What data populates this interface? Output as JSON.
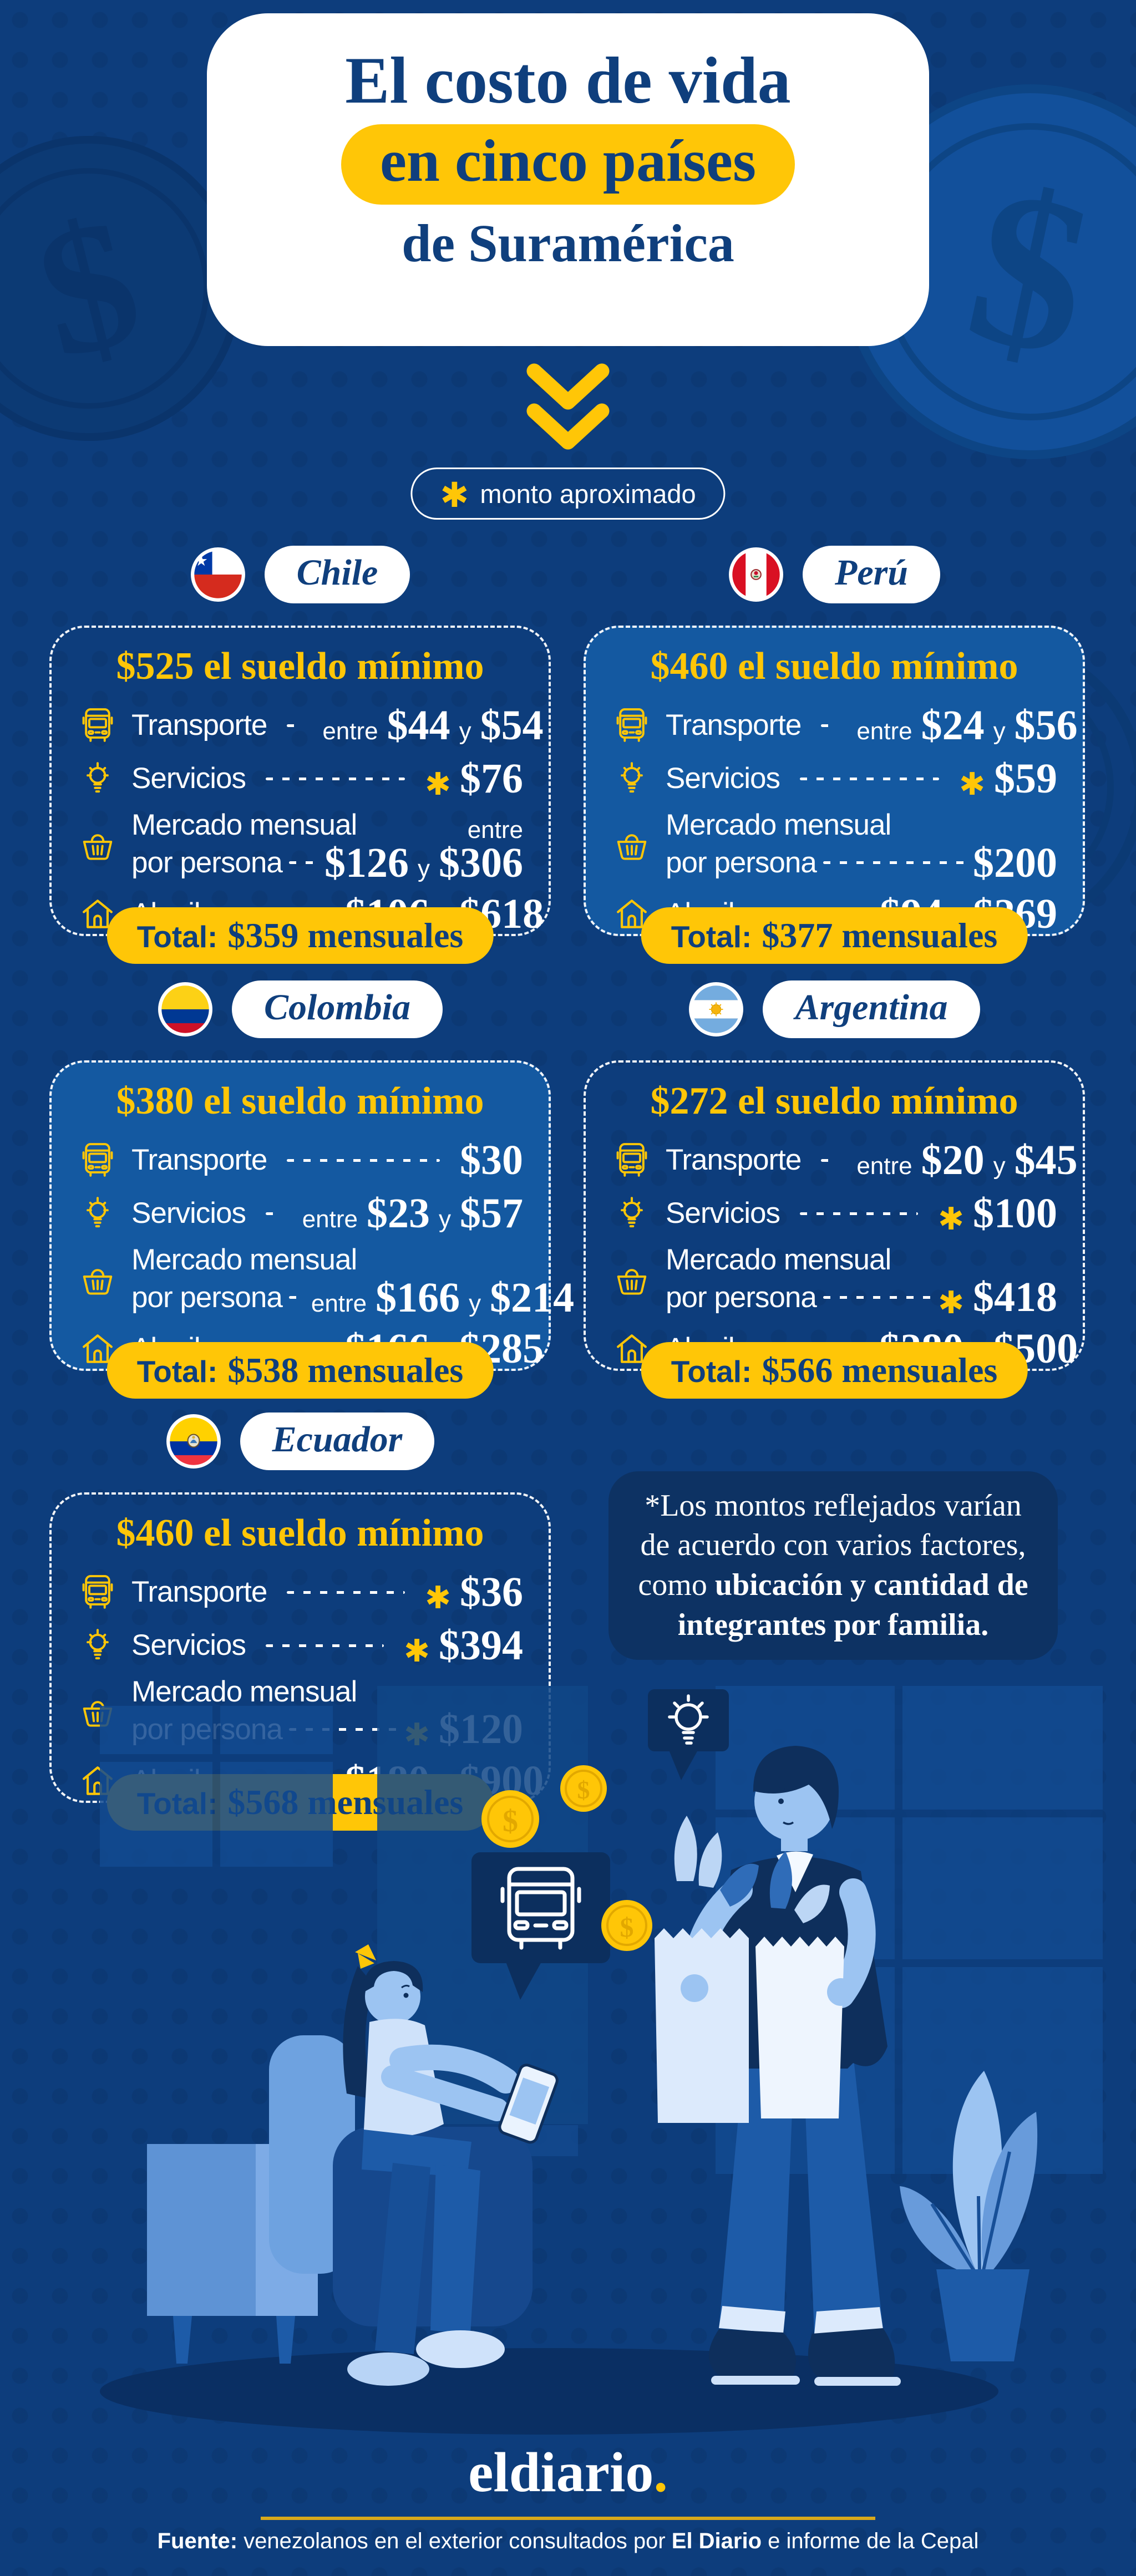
{
  "colors": {
    "background": "#0d3d7c",
    "yellow": "#ffc607",
    "navy_text": "#0f3f7d",
    "card_fill": "#1459a1",
    "note_bg": "#0d3263",
    "white": "#ffffff"
  },
  "symbols": {
    "asterisk": "✱",
    "dollar": "$"
  },
  "header": {
    "title_line1": "El costo de vida",
    "title_line2": "en cinco países",
    "title_line3": "de Suramérica"
  },
  "legend": {
    "label": "monto aproximado"
  },
  "countries": [
    {
      "id": "chile",
      "flag": "chile",
      "name": "Chile",
      "filled": false,
      "salary": "$525 el sueldo mínimo",
      "rows": [
        {
          "icon": "bus",
          "label": "Transporte",
          "entre": "entre",
          "a": "$44",
          "y": "y",
          "b": "$54"
        },
        {
          "icon": "bulb",
          "label": "Servicios",
          "ast": true,
          "a": "$76"
        },
        {
          "icon": "basket",
          "label": "Mercado mensual",
          "label2": "por persona",
          "entre": "entre",
          "entre_above": true,
          "a": "$126",
          "y": "y",
          "b": "$306"
        },
        {
          "icon": "house",
          "label": "Alquiler",
          "entre": "entre",
          "a": "$106",
          "y": "y",
          "b": "$618"
        }
      ],
      "total_label": "Total:",
      "total_value": "$359 mensuales"
    },
    {
      "id": "peru",
      "flag": "peru",
      "name": "Perú",
      "filled": true,
      "salary": "$460 el sueldo mínimo",
      "rows": [
        {
          "icon": "bus",
          "label": "Transporte",
          "entre": "entre",
          "a": "$24",
          "y": "y",
          "b": "$56"
        },
        {
          "icon": "bulb",
          "label": "Servicios",
          "ast": true,
          "a": "$59"
        },
        {
          "icon": "basket",
          "label": "Mercado mensual",
          "label2": "por persona",
          "a": "$200"
        },
        {
          "icon": "house",
          "label": "Alquiler",
          "entre": "entre",
          "a": "$94",
          "y": "y",
          "b": "$269"
        }
      ],
      "total_label": "Total:",
      "total_value": "$377 mensuales"
    },
    {
      "id": "colombia",
      "flag": "colombia",
      "name": "Colombia",
      "filled": true,
      "salary": "$380 el sueldo mínimo",
      "rows": [
        {
          "icon": "bus",
          "label": "Transporte",
          "a": "$30"
        },
        {
          "icon": "bulb",
          "label": "Servicios",
          "entre": "entre",
          "a": "$23",
          "y": "y",
          "b": "$57"
        },
        {
          "icon": "basket",
          "label": "Mercado mensual",
          "label2": "por persona",
          "entre": "entre",
          "a": "$166",
          "y": "y",
          "b": "$214"
        },
        {
          "icon": "house",
          "label": "Alquiler",
          "entre": "entre",
          "a": "$166",
          "y": "y",
          "b": "$285"
        }
      ],
      "total_label": "Total:",
      "total_value": "$538 mensuales"
    },
    {
      "id": "argentina",
      "flag": "argentina",
      "name": "Argentina",
      "filled": false,
      "salary": "$272 el sueldo mínimo",
      "rows": [
        {
          "icon": "bus",
          "label": "Transporte",
          "entre": "entre",
          "a": "$20",
          "y": "y",
          "b": "$45"
        },
        {
          "icon": "bulb",
          "label": "Servicios",
          "ast": true,
          "a": "$100"
        },
        {
          "icon": "basket",
          "label": "Mercado mensual",
          "label2": "por persona",
          "ast": true,
          "a": "$418"
        },
        {
          "icon": "house",
          "label": "Alquiler",
          "entre": "entre",
          "a": "$280",
          "y": "y",
          "b": "$500"
        }
      ],
      "total_label": "Total:",
      "total_value": "$566 mensuales"
    },
    {
      "id": "ecuador",
      "flag": "ecuador",
      "name": "Ecuador",
      "filled": false,
      "salary": "$460 el sueldo mínimo",
      "rows": [
        {
          "icon": "bus",
          "label": "Transporte",
          "ast": true,
          "a": "$36"
        },
        {
          "icon": "bulb",
          "label": "Servicios",
          "ast": true,
          "a": "$394"
        },
        {
          "icon": "basket",
          "label": "Mercado mensual",
          "label2": "por persona",
          "ast": true,
          "a": "$120"
        },
        {
          "icon": "house",
          "label": "Alquiler",
          "entre": "entre",
          "a": "$180",
          "y": "y",
          "b": "$900"
        }
      ],
      "total_label": "Total:",
      "total_value": "$568 mensuales"
    }
  ],
  "note": {
    "text_normal": "*Los montos reflejados varían de acuerdo con varios factores, como ",
    "text_bold": "ubicación y cantidad de integrantes por familia."
  },
  "illustration": {
    "coin_symbol": "$"
  },
  "footer": {
    "logo": "eldiario",
    "logo_dot": ".",
    "source_prefix": "Fuente:",
    "source_mid": " venezolanos en el exterior consultados por ",
    "source_brand": "El Diario",
    "source_suffix": " e informe de la Cepal"
  }
}
